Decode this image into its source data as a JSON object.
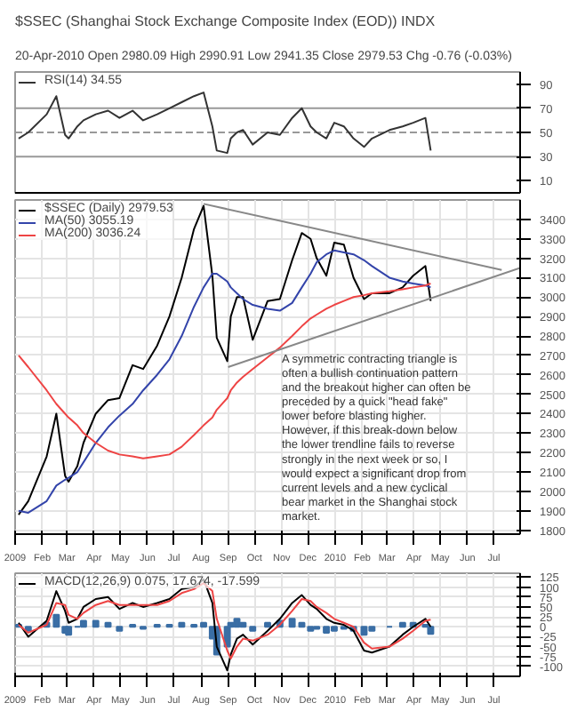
{
  "chart_data": [
    {
      "type": "line",
      "title": "$SSEC (Shanghai Stock Exchange Composite Index (EOD)) INDX",
      "subtitle": "20-Apr-2010 Open 2980.09 High 2990.91 Low 2941.35 Close 2979.53 Chg -0.76 (-0.03%)",
      "x": [
        "2009-01-05",
        "2009-01-16",
        "2009-02-06",
        "2009-02-17",
        "2009-02-27",
        "2009-03-03",
        "2009-03-13",
        "2009-03-20",
        "2009-04-03",
        "2009-04-17",
        "2009-04-30",
        "2009-05-15",
        "2009-05-27",
        "2009-06-12",
        "2009-06-26",
        "2009-07-10",
        "2009-07-24",
        "2009-08-04",
        "2009-08-14",
        "2009-08-19",
        "2009-08-31",
        "2009-09-04",
        "2009-09-11",
        "2009-09-18",
        "2009-09-29",
        "2009-10-16",
        "2009-10-30",
        "2009-11-13",
        "2009-11-24",
        "2009-12-04",
        "2009-12-11",
        "2009-12-22",
        "2009-12-31",
        "2010-01-11",
        "2010-01-22",
        "2010-02-03",
        "2010-02-12",
        "2010-03-04",
        "2010-03-19",
        "2010-03-31",
        "2010-04-14",
        "2010-04-20"
      ],
      "series": [
        {
          "name": "RSI(14) 34.55",
          "color": "#333333",
          "values": [
            45,
            50,
            65,
            80,
            48,
            45,
            55,
            60,
            65,
            68,
            62,
            68,
            60,
            65,
            70,
            75,
            80,
            83,
            55,
            35,
            33,
            45,
            50,
            52,
            40,
            50,
            48,
            62,
            70,
            55,
            50,
            45,
            58,
            55,
            45,
            38,
            45,
            52,
            55,
            58,
            62,
            35
          ]
        }
      ],
      "xlim": [
        "2009-01-01",
        "2010-07-31"
      ],
      "ylim": [
        0,
        100
      ],
      "yticks": [
        10,
        30,
        50,
        70,
        90
      ],
      "ref_lines": [
        {
          "axis": "y",
          "value": 30,
          "color": "#999999"
        },
        {
          "axis": "y",
          "value": 70,
          "color": "#999999"
        },
        {
          "axis": "y",
          "value": 50,
          "color": "#999999",
          "line_style": "dashed"
        }
      ],
      "grid": "x",
      "legend": "top left",
      "tick_labels": "y"
    },
    {
      "type": "line",
      "x": [
        "2009-01-05",
        "2009-01-16",
        "2009-02-06",
        "2009-02-17",
        "2009-02-27",
        "2009-03-03",
        "2009-03-13",
        "2009-03-20",
        "2009-04-03",
        "2009-04-17",
        "2009-04-30",
        "2009-05-15",
        "2009-05-27",
        "2009-06-12",
        "2009-06-26",
        "2009-07-10",
        "2009-07-24",
        "2009-08-04",
        "2009-08-14",
        "2009-08-19",
        "2009-08-31",
        "2009-09-04",
        "2009-09-11",
        "2009-09-18",
        "2009-09-29",
        "2009-10-16",
        "2009-10-30",
        "2009-11-13",
        "2009-11-24",
        "2009-12-04",
        "2009-12-11",
        "2009-12-22",
        "2009-12-31",
        "2010-01-11",
        "2010-01-22",
        "2010-02-03",
        "2010-02-12",
        "2010-03-04",
        "2010-03-19",
        "2010-03-31",
        "2010-04-14",
        "2010-04-20"
      ],
      "series": [
        {
          "name": "$SSEC (Daily) 2979.53",
          "color": "#000000",
          "values": [
            1880,
            1950,
            2180,
            2400,
            2080,
            2050,
            2130,
            2250,
            2400,
            2470,
            2480,
            2650,
            2630,
            2750,
            2900,
            3100,
            3350,
            3470,
            3110,
            2790,
            2670,
            2900,
            3000,
            3000,
            2780,
            2980,
            2990,
            3190,
            3330,
            3300,
            3200,
            3110,
            3280,
            3270,
            3100,
            2990,
            3020,
            3020,
            3050,
            3110,
            3160,
            2980
          ]
        },
        {
          "name": "MA(50) 3055.19",
          "color": "#3344aa",
          "values": [
            1900,
            1890,
            1950,
            2030,
            2060,
            2070,
            2100,
            2150,
            2250,
            2330,
            2390,
            2450,
            2520,
            2600,
            2680,
            2800,
            2950,
            3050,
            3120,
            3120,
            3080,
            3050,
            3020,
            2990,
            2960,
            2940,
            2930,
            2970,
            3050,
            3120,
            3180,
            3220,
            3240,
            3230,
            3220,
            3190,
            3160,
            3100,
            3080,
            3070,
            3060,
            3050
          ]
        },
        {
          "name": "MA(200) 3036.24",
          "color": "#ee4444",
          "values": [
            2700,
            2640,
            2520,
            2450,
            2400,
            2380,
            2340,
            2300,
            2250,
            2210,
            2190,
            2180,
            2170,
            2180,
            2190,
            2230,
            2290,
            2340,
            2380,
            2420,
            2480,
            2520,
            2560,
            2590,
            2630,
            2690,
            2740,
            2800,
            2850,
            2890,
            2910,
            2940,
            2960,
            2980,
            3000,
            3010,
            3020,
            3030,
            3040,
            3050,
            3060,
            3070
          ]
        },
        {
          "color": "#888888",
          "x": [
            "2009-08-04",
            "2010-07-10"
          ],
          "values": [
            3480,
            3140
          ]
        },
        {
          "color": "#888888",
          "x": [
            "2009-09-01",
            "2010-07-31"
          ],
          "values": [
            2640,
            3150
          ]
        }
      ],
      "xlim": [
        "2009-01-01",
        "2010-07-31"
      ],
      "ylim": [
        1780,
        3500
      ],
      "yticks": [
        1800,
        1900,
        2000,
        2100,
        2200,
        2300,
        2400,
        2500,
        2600,
        2700,
        2800,
        2900,
        3000,
        3100,
        3200,
        3300,
        3400
      ],
      "xticks": [
        {
          "value": "2009-01-01",
          "label": "2009"
        },
        {
          "value": "2009-02-01",
          "label": "Feb"
        },
        {
          "value": "2009-03-01",
          "label": "Mar"
        },
        {
          "value": "2009-04-01",
          "label": "Apr"
        },
        {
          "value": "2009-05-01",
          "label": "May"
        },
        {
          "value": "2009-06-01",
          "label": "Jun"
        },
        {
          "value": "2009-07-01",
          "label": "Jul"
        },
        {
          "value": "2009-08-01",
          "label": "Aug"
        },
        {
          "value": "2009-09-01",
          "label": "Sep"
        },
        {
          "value": "2009-10-01",
          "label": "Oct"
        },
        {
          "value": "2009-11-01",
          "label": "Nov"
        },
        {
          "value": "2009-12-01",
          "label": "Dec"
        },
        {
          "value": "2010-01-01",
          "label": "2010"
        },
        {
          "value": "2010-02-01",
          "label": "Feb"
        },
        {
          "value": "2010-03-01",
          "label": "Mar"
        },
        {
          "value": "2010-04-01",
          "label": "Apr"
        },
        {
          "value": "2010-05-01",
          "label": "May"
        },
        {
          "value": "2010-06-01",
          "label": "Jun"
        },
        {
          "value": "2010-07-01",
          "label": "Jul"
        }
      ],
      "annotations": [
        "A symmetric contracting triangle is often a bullish continuation pattern and the breakout higher can often be preceded by a quick \"head fake\" lower before blasting higher. However, if this break-down below the lower trendline fails to reverse strongly in the next week or so, I would expect a significant drop from current levels and a new cyclical bear market in the Shanghai stock market."
      ],
      "grid": true,
      "legend": "top left"
    },
    {
      "type": "line",
      "x": [
        "2009-01-05",
        "2009-01-16",
        "2009-02-06",
        "2009-02-17",
        "2009-02-27",
        "2009-03-03",
        "2009-03-13",
        "2009-03-20",
        "2009-04-03",
        "2009-04-17",
        "2009-04-30",
        "2009-05-15",
        "2009-05-27",
        "2009-06-12",
        "2009-06-26",
        "2009-07-10",
        "2009-07-24",
        "2009-08-04",
        "2009-08-14",
        "2009-08-19",
        "2009-08-31",
        "2009-09-04",
        "2009-09-11",
        "2009-09-18",
        "2009-09-29",
        "2009-10-16",
        "2009-10-30",
        "2009-11-13",
        "2009-11-24",
        "2009-12-04",
        "2009-12-11",
        "2009-12-22",
        "2009-12-31",
        "2010-01-11",
        "2010-01-22",
        "2010-02-03",
        "2010-02-12",
        "2010-03-04",
        "2010-03-19",
        "2010-03-31",
        "2010-04-14",
        "2010-04-20"
      ],
      "series": [
        {
          "type": "bar",
          "color": "#3a6ea5",
          "values": [
            5,
            -10,
            10,
            30,
            -15,
            -20,
            0,
            15,
            15,
            10,
            -10,
            5,
            -5,
            5,
            5,
            10,
            5,
            10,
            -30,
            -70,
            -50,
            10,
            20,
            10,
            -10,
            10,
            15,
            20,
            10,
            -10,
            -5,
            -15,
            -10,
            -5,
            -10,
            -20,
            -10,
            0,
            10,
            10,
            5,
            -18
          ]
        },
        {
          "name": "MACD(12,26,9) 0.075, 17.674, -17.599",
          "color": "#000000",
          "values": [
            10,
            -25,
            15,
            90,
            40,
            10,
            20,
            50,
            70,
            75,
            45,
            60,
            50,
            60,
            70,
            95,
            100,
            120,
            60,
            -50,
            -110,
            -70,
            -30,
            -20,
            -45,
            -10,
            20,
            60,
            80,
            55,
            45,
            20,
            10,
            5,
            -10,
            -60,
            -65,
            -50,
            -20,
            0,
            20,
            0
          ]
        },
        {
          "color": "#ee4444",
          "values": [
            5,
            -15,
            5,
            60,
            55,
            30,
            20,
            35,
            55,
            65,
            55,
            55,
            55,
            55,
            65,
            85,
            95,
            110,
            90,
            20,
            -60,
            -80,
            -50,
            -30,
            -35,
            -20,
            5,
            40,
            70,
            65,
            50,
            35,
            20,
            10,
            0,
            -40,
            -55,
            -50,
            -30,
            -10,
            15,
            18
          ]
        }
      ],
      "xlim": [
        "2009-01-01",
        "2010-07-31"
      ],
      "ylim": [
        -125,
        135
      ],
      "yticks": [
        -100,
        -75,
        -50,
        -25,
        0,
        25,
        50,
        75,
        100,
        125
      ],
      "xticks": [
        {
          "value": "2009-01-01",
          "label": "2009"
        },
        {
          "value": "2009-02-01",
          "label": "Feb"
        },
        {
          "value": "2009-03-01",
          "label": "Mar"
        },
        {
          "value": "2009-04-01",
          "label": "Apr"
        },
        {
          "value": "2009-05-01",
          "label": "May"
        },
        {
          "value": "2009-06-01",
          "label": "Jun"
        },
        {
          "value": "2009-07-01",
          "label": "Jul"
        },
        {
          "value": "2009-08-01",
          "label": "Aug"
        },
        {
          "value": "2009-09-01",
          "label": "Sep"
        },
        {
          "value": "2009-10-01",
          "label": "Oct"
        },
        {
          "value": "2009-11-01",
          "label": "Nov"
        },
        {
          "value": "2009-12-01",
          "label": "Dec"
        },
        {
          "value": "2010-01-01",
          "label": "2010"
        },
        {
          "value": "2010-02-01",
          "label": "Feb"
        },
        {
          "value": "2010-03-01",
          "label": "Mar"
        },
        {
          "value": "2010-04-01",
          "label": "Apr"
        },
        {
          "value": "2010-05-01",
          "label": "May"
        },
        {
          "value": "2010-06-01",
          "label": "Jun"
        },
        {
          "value": "2010-07-01",
          "label": "Jul"
        }
      ],
      "grid": true,
      "legend": "top left"
    }
  ]
}
